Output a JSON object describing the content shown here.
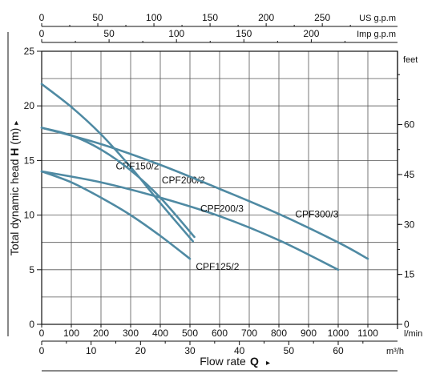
{
  "chart_data": {
    "type": "line",
    "xlabel": "Flow rate",
    "xlabel_symbol": "Q",
    "ylabel": "Total dynamic head",
    "ylabel_symbol": "H",
    "ylabel_unit": "(m)",
    "marker_glyph": "▸",
    "x_unit_lmin": "l/min",
    "x_unit_m3h": "m³/h",
    "x_unit_usgpm": "US g.p.m",
    "x_unit_impgpm": "Imp g.p.m",
    "y_unit_feet": "feet",
    "xlim": [
      0,
      1200
    ],
    "ylim": [
      0,
      25
    ],
    "grid": true,
    "x_ticks_lmin": [
      0,
      100,
      200,
      300,
      400,
      500,
      600,
      700,
      800,
      900,
      1000,
      1100
    ],
    "x_ticks_m3h": [
      0,
      10,
      20,
      30,
      40,
      50,
      60
    ],
    "x_ticks_usgpm": [
      0,
      50,
      100,
      150,
      200,
      250
    ],
    "x_ticks_impgpm": [
      0,
      50,
      100,
      150,
      200
    ],
    "y_ticks_m": [
      0,
      5,
      10,
      15,
      20,
      25
    ],
    "y_ticks_feet": [
      0,
      15,
      30,
      45,
      60
    ],
    "series": [
      {
        "name": "CPF125/2",
        "label_at": [
          520,
          5.0
        ],
        "x": [
          0,
          100,
          200,
          300,
          400,
          500
        ],
        "y": [
          14.0,
          13.0,
          11.6,
          10.0,
          8.1,
          6.0
        ]
      },
      {
        "name": "CPF150/2",
        "label_at": [
          250,
          14.2
        ],
        "x": [
          0,
          100,
          200,
          300,
          400,
          510
        ],
        "y": [
          22.0,
          19.9,
          17.4,
          14.4,
          11.1,
          7.6
        ]
      },
      {
        "name": "CPF200/2",
        "label_at": [
          405,
          12.9
        ],
        "x": [
          0,
          100,
          200,
          300,
          400,
          515
        ],
        "y": [
          18.0,
          17.3,
          16.0,
          14.1,
          11.6,
          8.0
        ]
      },
      {
        "name": "CPF200/3",
        "label_at": [
          535,
          10.3
        ],
        "x": [
          0,
          200,
          400,
          600,
          800,
          1000
        ],
        "y": [
          14.0,
          13.0,
          11.6,
          9.9,
          7.7,
          5.0
        ]
      },
      {
        "name": "CPF300/3",
        "label_at": [
          855,
          9.8
        ],
        "x": [
          0,
          200,
          400,
          600,
          800,
          1000,
          1100
        ],
        "y": [
          18.0,
          16.5,
          14.6,
          12.4,
          10.1,
          7.5,
          6.0
        ]
      }
    ]
  }
}
